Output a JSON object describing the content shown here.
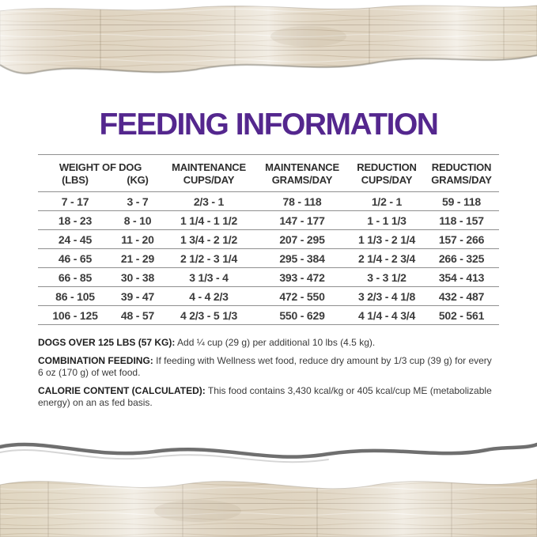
{
  "title": "FEEDING INFORMATION",
  "table": {
    "weight_header": "WEIGHT OF DOG",
    "top_headers": [
      "MAINTENANCE",
      "MAINTENANCE",
      "REDUCTION",
      "REDUCTION"
    ],
    "sub_headers": [
      "(LBS)",
      "(KG)",
      "CUPS/DAY",
      "GRAMS/DAY",
      "CUPS/DAY",
      "GRAMS/DAY"
    ],
    "rows": [
      [
        "7 - 17",
        "3 - 7",
        "2/3 - 1",
        "78 - 118",
        "1/2 - 1",
        "59 - 118"
      ],
      [
        "18 - 23",
        "8 - 10",
        "1 1/4 - 1 1/2",
        "147 - 177",
        "1 - 1 1/3",
        "118 - 157"
      ],
      [
        "24 - 45",
        "11 - 20",
        "1 3/4 - 2 1/2",
        "207 - 295",
        "1 1/3 - 2 1/4",
        "157 - 266"
      ],
      [
        "46 - 65",
        "21 - 29",
        "2 1/2 - 3 1/4",
        "295 - 384",
        "2 1/4 - 2 3/4",
        "266 - 325"
      ],
      [
        "66 - 85",
        "30 - 38",
        "3 1/3 - 4",
        "393 - 472",
        "3 - 3 1/2",
        "354 - 413"
      ],
      [
        "86 - 105",
        "39 - 47",
        "4 - 4 2/3",
        "472 - 550",
        "3 2/3 - 4 1/8",
        "432 - 487"
      ],
      [
        "106 - 125",
        "48 - 57",
        "4 2/3 - 5 1/3",
        "550 - 629",
        "4 1/4 - 4 3/4",
        "502 - 561"
      ]
    ]
  },
  "notes": [
    {
      "label": "DOGS OVER 125 LBS (57 KG):",
      "text": "Add ¼ cup (29 g) per additional 10 lbs (4.5 kg)."
    },
    {
      "label": "COMBINATION FEEDING:",
      "text": "If feeding with Wellness wet food, reduce dry amount by 1/3 cup (39 g) for every 6 oz (170 g) of wet food."
    },
    {
      "label": "CALORIE CONTENT (CALCULATED):",
      "text": "This food contains 3,430 kcal/kg or 405 kcal/cup ME (metabolizable energy) on an as fed basis."
    }
  ],
  "colors": {
    "accent_purple": "#54278e",
    "rule_gray": "#8f8f8f",
    "text_dark": "#2e2e2e",
    "wood_base": "#e9e1d2"
  }
}
